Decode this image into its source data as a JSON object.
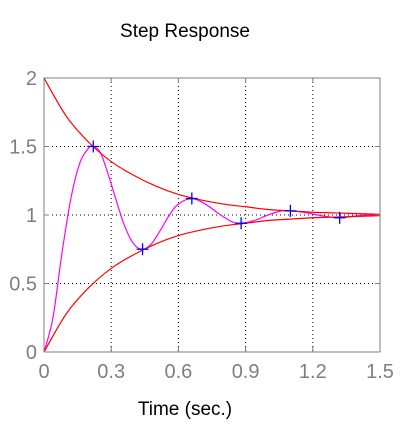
{
  "chart_data": {
    "type": "line",
    "title": "Step Response",
    "xlabel": "Time (sec.)",
    "ylabel": "",
    "xlim": [
      0,
      1.5
    ],
    "ylim": [
      0,
      2
    ],
    "xticks": [
      "0",
      "0.3",
      "0.6",
      "0.9",
      "1.2",
      "1.5"
    ],
    "yticks": [
      "0",
      "0.5",
      "1",
      "1.5",
      "2"
    ],
    "grid": true,
    "reference_line": 1,
    "series": [
      {
        "style": "response-curve",
        "color": "#ff00ff",
        "x": [
          0,
          0.04,
          0.08,
          0.12,
          0.16,
          0.2,
          0.22,
          0.25,
          0.28,
          0.32,
          0.36,
          0.4,
          0.44,
          0.48,
          0.52,
          0.56,
          0.6,
          0.66,
          0.72,
          0.78,
          0.84,
          0.88,
          0.94,
          1.0,
          1.06,
          1.1,
          1.16,
          1.22,
          1.28,
          1.32,
          1.38,
          1.44,
          1.5
        ],
        "y": [
          0,
          0.25,
          0.72,
          1.12,
          1.38,
          1.49,
          1.5,
          1.46,
          1.33,
          1.12,
          0.92,
          0.79,
          0.75,
          0.79,
          0.89,
          1.0,
          1.08,
          1.12,
          1.08,
          1.01,
          0.95,
          0.94,
          0.96,
          1.0,
          1.03,
          1.03,
          1.02,
          1.0,
          0.985,
          0.98,
          0.99,
          1.0,
          1.0
        ]
      },
      {
        "style": "upper-envelope",
        "color": "#ff0000",
        "x": [
          0,
          0.1,
          0.2,
          0.3,
          0.4,
          0.5,
          0.6,
          0.7,
          0.8,
          0.9,
          1.0,
          1.1,
          1.2,
          1.3,
          1.4,
          1.5
        ],
        "y": [
          2.0,
          1.72,
          1.53,
          1.39,
          1.29,
          1.21,
          1.15,
          1.11,
          1.08,
          1.06,
          1.04,
          1.03,
          1.02,
          1.015,
          1.01,
          1.005
        ]
      },
      {
        "style": "lower-envelope",
        "color": "#ff0000",
        "x": [
          0,
          0.1,
          0.2,
          0.3,
          0.4,
          0.5,
          0.6,
          0.7,
          0.8,
          0.9,
          1.0,
          1.1,
          1.2,
          1.3,
          1.4,
          1.5
        ],
        "y": [
          0.0,
          0.28,
          0.47,
          0.61,
          0.71,
          0.79,
          0.85,
          0.89,
          0.92,
          0.94,
          0.96,
          0.97,
          0.98,
          0.985,
          0.99,
          0.995
        ]
      }
    ],
    "markers": {
      "symbol": "+",
      "color": "#0000ff",
      "points": [
        [
          0.22,
          1.5
        ],
        [
          0.44,
          0.75
        ],
        [
          0.66,
          1.12
        ],
        [
          0.88,
          0.94
        ],
        [
          1.1,
          1.03
        ],
        [
          1.32,
          0.98
        ]
      ]
    }
  }
}
